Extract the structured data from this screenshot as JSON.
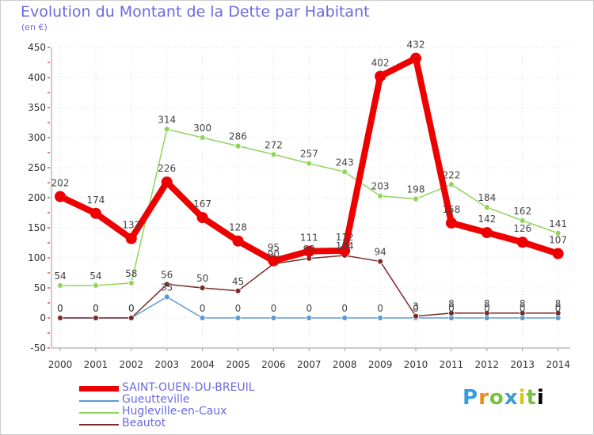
{
  "title": "Evolution du Montant de la Dette par Habitant",
  "unit": "(en €)",
  "logo": "Proxiti",
  "chart_data": {
    "type": "line",
    "x": [
      "2000",
      "2001",
      "2002",
      "2003",
      "2004",
      "2005",
      "2006",
      "2007",
      "2008",
      "2009",
      "2010",
      "2011",
      "2012",
      "2013",
      "2014"
    ],
    "ylim": [
      -50,
      450
    ],
    "yticks": [
      -50,
      0,
      50,
      100,
      150,
      200,
      250,
      300,
      350,
      400,
      450
    ],
    "grid": true,
    "legend_position": "bottom-left",
    "series": [
      {
        "name": "SAINT-OUEN-DU-BREUIL",
        "color": "#ee0000",
        "values": [
          202,
          174,
          132,
          226,
          167,
          128,
          95,
          111,
          112,
          402,
          432,
          158,
          142,
          126,
          107
        ],
        "labels": [
          "202",
          "174",
          "132",
          "226",
          "167",
          "128",
          "95",
          "111",
          "112",
          "402",
          "432",
          "158",
          "142",
          "126",
          "107"
        ]
      },
      {
        "name": "Gueutteville",
        "color": "#5b9bd5",
        "values": [
          0,
          0,
          0,
          35,
          0,
          0,
          0,
          0,
          0,
          0,
          0,
          0,
          0,
          0,
          0
        ],
        "labels": [
          "0",
          "0",
          "0",
          "35",
          "0",
          "0",
          "0",
          "0",
          "0",
          "0",
          "0",
          "0",
          "0",
          "0",
          "0"
        ]
      },
      {
        "name": "Hugleville-en-Caux",
        "color": "#8fd45b",
        "values": [
          54,
          54,
          58,
          314,
          300,
          286,
          272,
          257,
          243,
          203,
          198,
          222,
          184,
          162,
          141
        ],
        "labels": [
          "54",
          "54",
          "58",
          "314",
          "300",
          "286",
          "272",
          "257",
          "243",
          "203",
          "198",
          "222",
          "184",
          "162",
          "141"
        ]
      },
      {
        "name": "Beautot",
        "color": "#7a2c2c",
        "values": [
          0,
          0,
          0,
          56,
          50,
          45,
          90,
          99,
          104,
          94,
          3,
          8,
          8,
          8,
          8
        ],
        "labels": [
          "0",
          "0",
          "0",
          "56",
          "50",
          "45",
          "90",
          "99",
          "104",
          "94",
          "3",
          "8",
          "8",
          "8",
          "8"
        ]
      }
    ]
  }
}
